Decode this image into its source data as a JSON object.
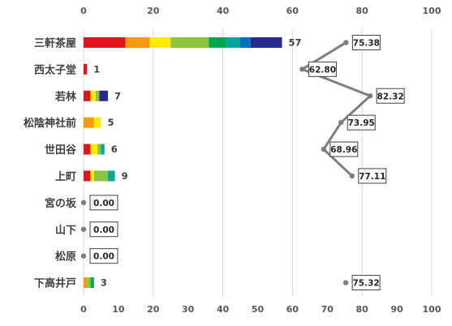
{
  "chart_data": {
    "type": "bar",
    "categories": [
      "三軒茶屋",
      "西太子堂",
      "若林",
      "松陰神社前",
      "世田谷",
      "上町",
      "宮の坂",
      "山下",
      "松原",
      "下高井戸"
    ],
    "stack_colors": [
      "#e0141c",
      "#f39c12",
      "#ffeb00",
      "#8cc63f",
      "#00a651",
      "#00a99d",
      "#0072bc",
      "#262a8c"
    ],
    "stacks": [
      [
        12,
        7,
        6,
        11,
        5,
        4,
        3,
        9
      ],
      [
        1,
        0,
        0,
        0,
        0,
        0,
        0,
        0
      ],
      [
        2,
        0,
        1.5,
        1,
        0,
        0,
        0,
        2.5
      ],
      [
        0,
        3,
        2,
        0,
        0,
        0,
        0,
        0
      ],
      [
        2,
        0,
        2,
        1,
        0,
        1,
        0,
        0
      ],
      [
        2,
        0,
        1,
        4,
        0,
        2,
        0,
        0
      ],
      [
        0,
        0,
        0,
        0,
        0,
        0,
        0,
        0
      ],
      [
        0,
        0,
        0,
        0,
        0,
        0,
        0,
        0
      ],
      [
        0,
        0,
        0,
        0,
        0,
        0,
        0,
        0
      ],
      [
        0,
        1,
        0,
        1,
        1,
        0,
        0,
        0
      ]
    ],
    "totals": [
      57,
      1,
      7,
      5,
      6,
      9,
      0,
      0,
      0,
      3
    ],
    "series": [
      {
        "values": [
          57,
          1,
          7,
          5,
          6,
          9,
          0,
          0,
          0,
          3
        ]
      },
      {
        "values": [
          75.38,
          62.8,
          82.32,
          73.95,
          68.96,
          77.11,
          0.0,
          0.0,
          0.0,
          75.32
        ]
      }
    ],
    "score_labels": [
      "75.38",
      "62.80",
      "82.32",
      "73.95",
      "68.96",
      "77.11",
      "0.00",
      "0.00",
      "0.00",
      "75.32"
    ],
    "top_axis": {
      "range": [
        0,
        100
      ],
      "ticks": [
        "0",
        "20",
        "40",
        "60",
        "80",
        "100"
      ]
    },
    "bottom_axis": {
      "range": [
        0,
        100
      ],
      "ticks": [
        "0",
        "10",
        "20",
        "30",
        "40",
        "50",
        "60",
        "70",
        "80",
        "90",
        "100"
      ]
    },
    "grid": true,
    "line_color": "#7f7f7f"
  }
}
